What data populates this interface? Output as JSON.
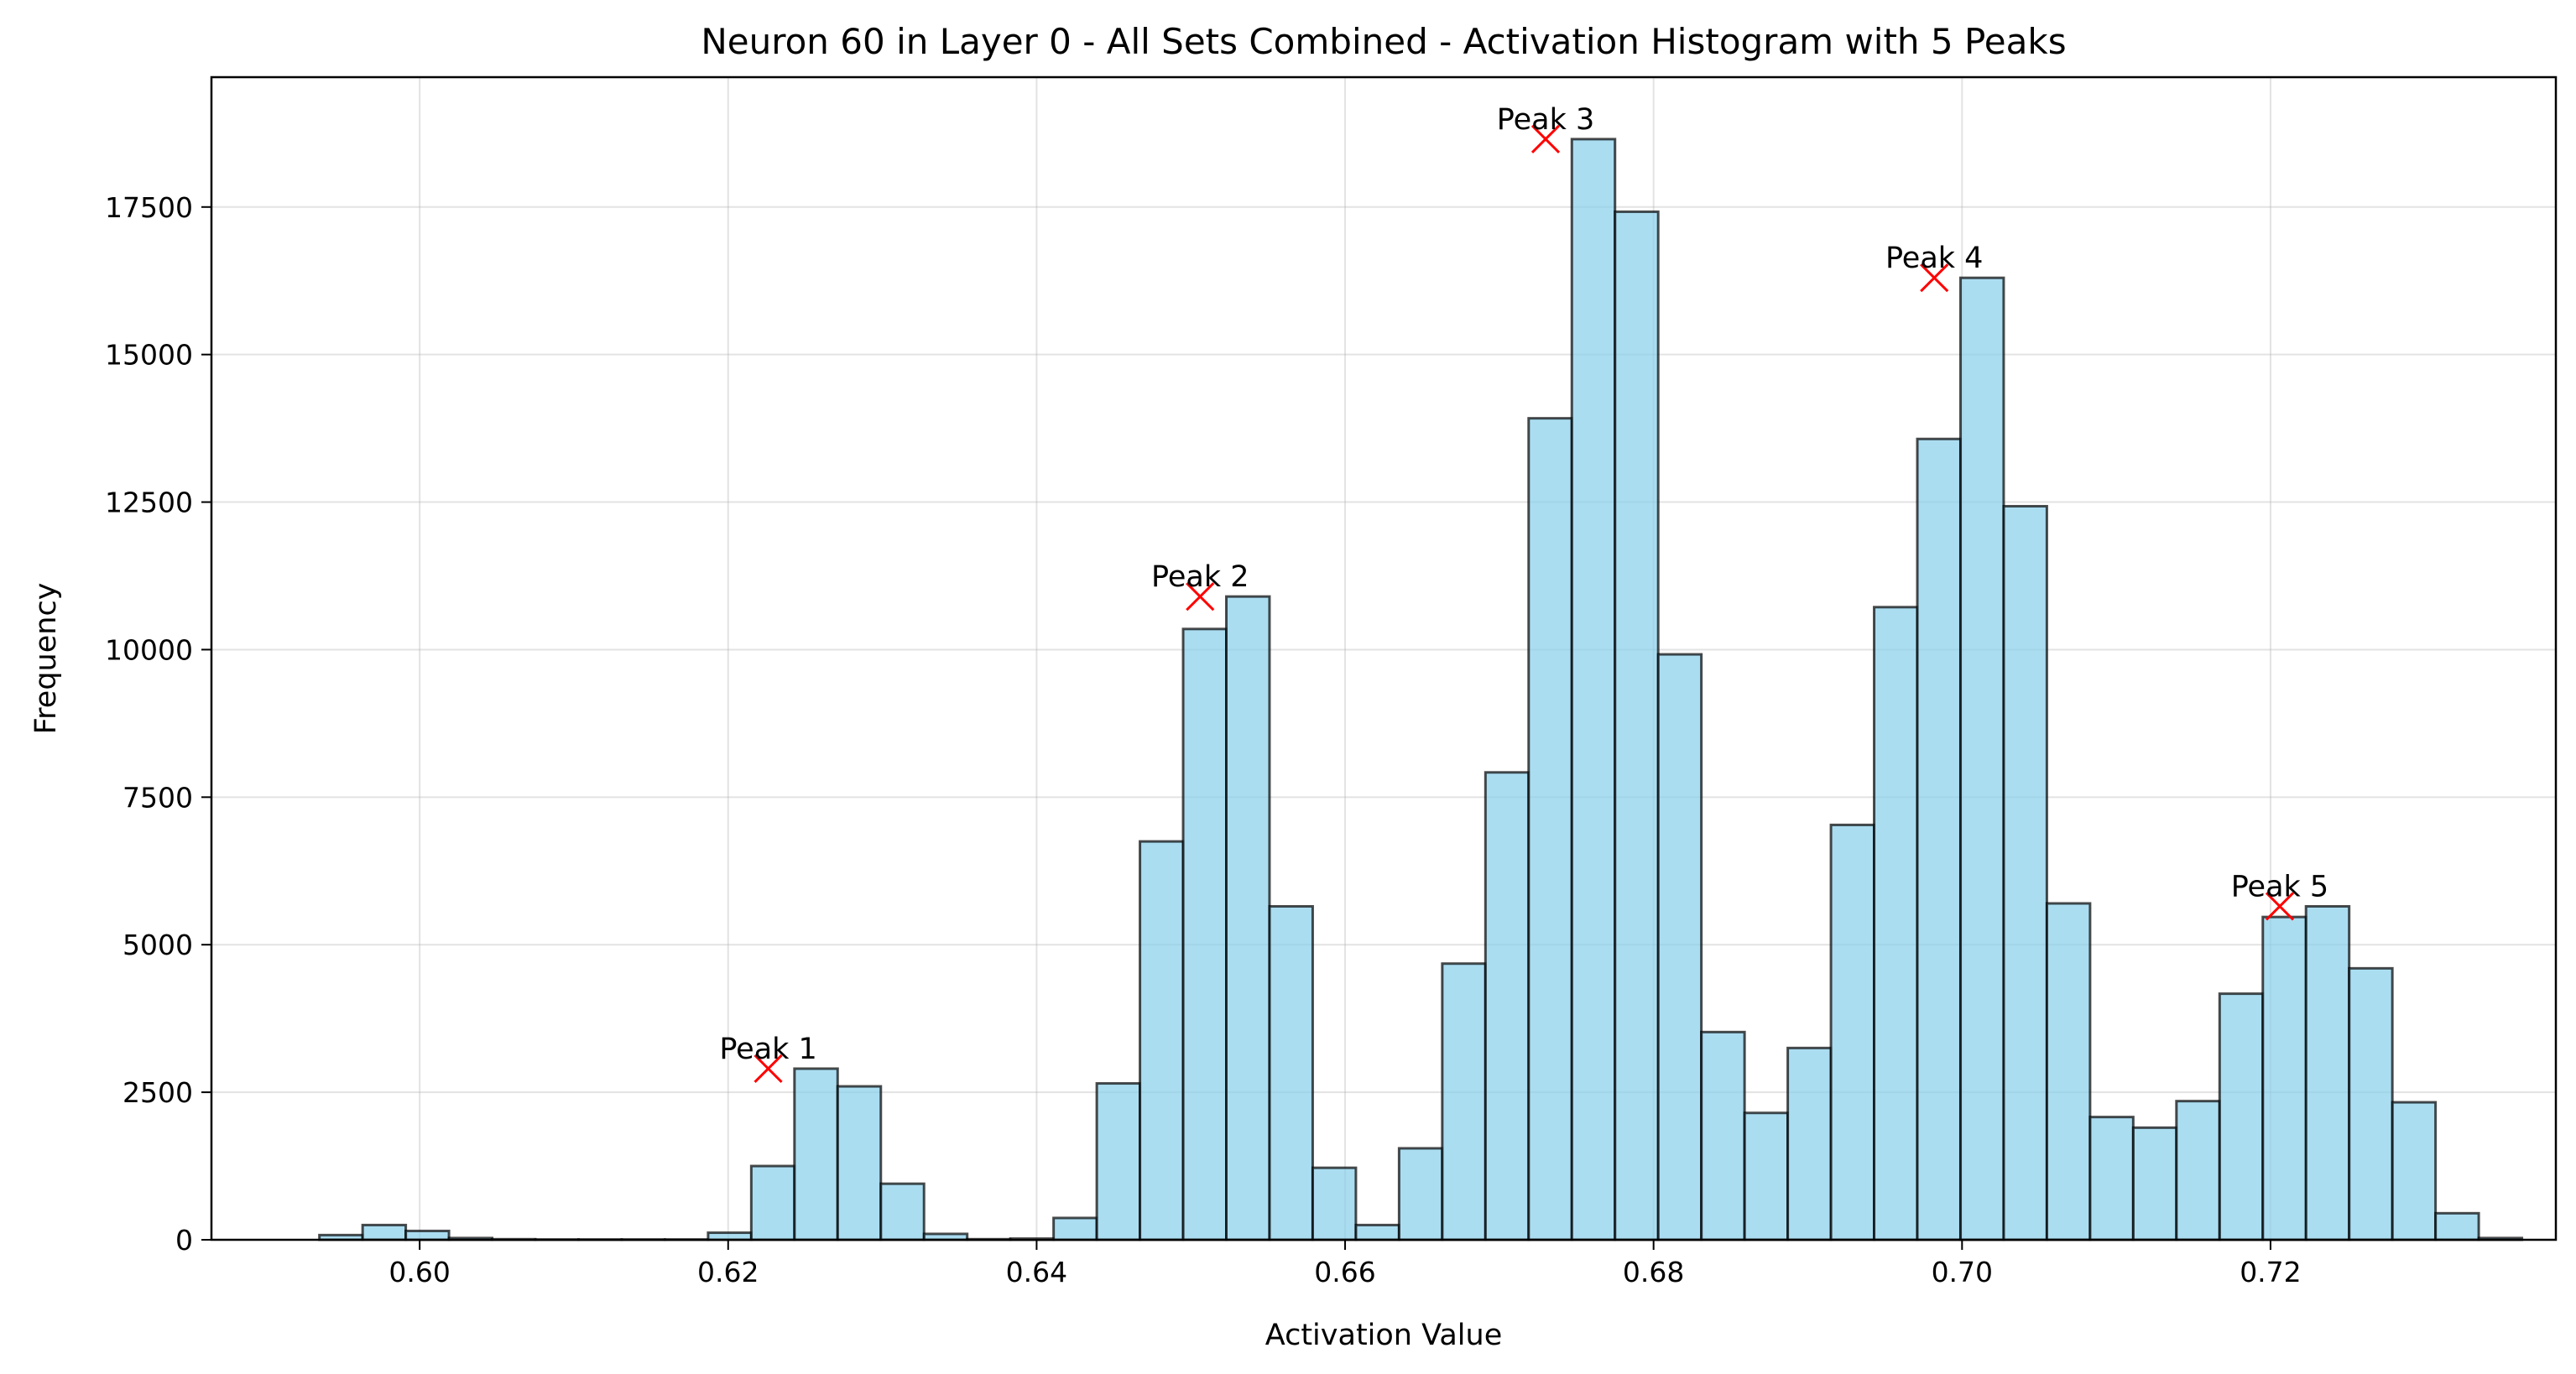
{
  "chart_data": {
    "type": "bar",
    "title": "Neuron 60 in Layer 0 - All Sets Combined - Activation Histogram with 5 Peaks",
    "xlabel": "Activation Value",
    "ylabel": "Frequency",
    "xlim": [
      0.5865,
      0.7385
    ],
    "ylim": [
      0,
      19700
    ],
    "xticks": [
      0.6,
      0.62,
      0.64,
      0.66,
      0.68,
      0.7,
      0.72
    ],
    "xtick_labels": [
      "0.60",
      "0.62",
      "0.64",
      "0.66",
      "0.68",
      "0.70",
      "0.72"
    ],
    "yticks": [
      0,
      2500,
      5000,
      7500,
      10000,
      12500,
      15000,
      17500
    ],
    "ytick_labels": [
      "0",
      "2500",
      "5000",
      "7500",
      "10000",
      "12500",
      "15000",
      "17500"
    ],
    "grid": true,
    "bin_start": 0.5935,
    "bin_width": 0.0028,
    "values": [
      80,
      250,
      150,
      30,
      10,
      5,
      5,
      5,
      5,
      120,
      1250,
      2900,
      2600,
      950,
      100,
      10,
      20,
      370,
      2650,
      6750,
      10350,
      10900,
      5650,
      1220,
      250,
      1550,
      4680,
      7920,
      13920,
      18650,
      17420,
      9920,
      3520,
      2150,
      3250,
      7030,
      10720,
      13570,
      16300,
      12430,
      5700,
      2080,
      1900,
      2350,
      4170,
      5470,
      5650,
      4600,
      2330,
      450,
      30
    ],
    "peaks": [
      {
        "label": "Peak 1",
        "x": 0.6226,
        "y": 2900
      },
      {
        "label": "Peak 2",
        "x": 0.6506,
        "y": 10900
      },
      {
        "label": "Peak 3",
        "x": 0.673,
        "y": 18650
      },
      {
        "label": "Peak 4",
        "x": 0.6982,
        "y": 16300
      },
      {
        "label": "Peak 5",
        "x": 0.7206,
        "y": 5650
      }
    ],
    "colors": {
      "bar_fill": "#87ceeb",
      "bar_edge": "#000000",
      "peak_marker": "#ff0000"
    }
  }
}
